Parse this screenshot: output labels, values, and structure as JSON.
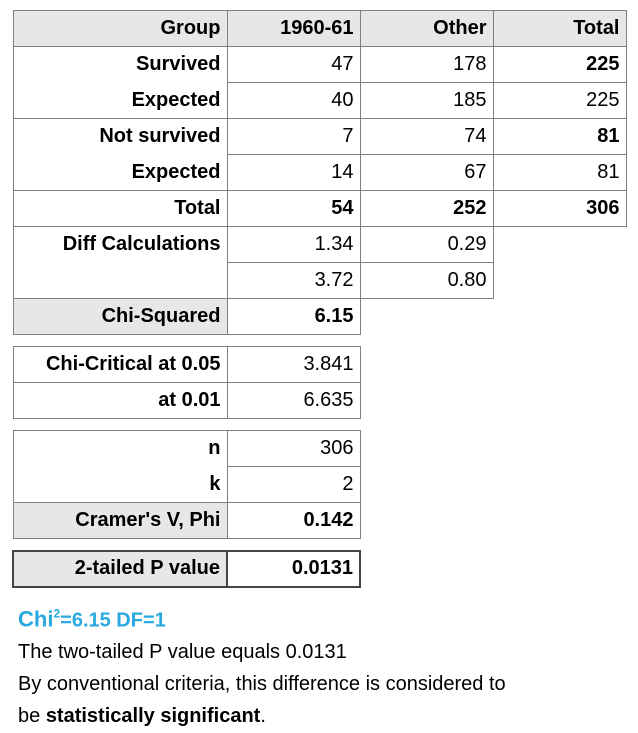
{
  "table": {
    "header": [
      "Group",
      "1960-61",
      "Other",
      "Total"
    ],
    "rows": [
      {
        "label": "Survived",
        "v1": "47",
        "v2": "178",
        "tot": "225"
      },
      {
        "label": "Expected",
        "v1": "40",
        "v2": "185",
        "tot": "225"
      },
      {
        "label": "Not survived",
        "v1": "7",
        "v2": "74",
        "tot": "81"
      },
      {
        "label": "Expected",
        "v1": "14",
        "v2": "67",
        "tot": "81"
      },
      {
        "label": "Total",
        "v1": "54",
        "v2": "252",
        "tot": "306"
      }
    ],
    "diff_label": "Diff Calculations",
    "diff": [
      [
        "1.34",
        "0.29"
      ],
      [
        "3.72",
        "0.80"
      ]
    ],
    "chi_sq_label": "Chi-Squared",
    "chi_sq_value": "6.15",
    "crit_label_1": "Chi-Critical at 0.05",
    "crit_value_1": "3.841",
    "crit_label_2": "at 0.01",
    "crit_value_2": "6.635",
    "n_label": "n",
    "n_value": "306",
    "k_label": "k",
    "k_value": "2",
    "cramer_label": "Cramer's V,  Phi",
    "cramer_value": "0.142",
    "p_label": "2-tailed P value",
    "p_value": "0.0131"
  },
  "result": {
    "chi_prefix": "Chi",
    "chi_sup": "2",
    "chi_rest": "=6.15   DF=1",
    "line1": "The two-tailed P value equals 0.0131",
    "line2": "By conventional criteria, this difference is considered to",
    "line3_pre": "be ",
    "line3_bold": "statistically significant",
    "line3_post": "."
  },
  "colors": {
    "accent": "#29a9e0",
    "header_bg": "#e7e7e7",
    "border": "#7f7f7f"
  }
}
